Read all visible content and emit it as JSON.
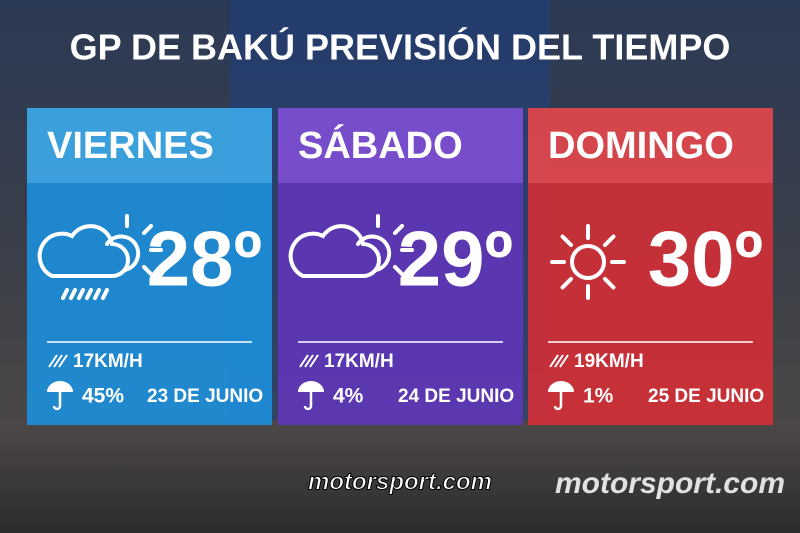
{
  "header": {
    "title": "GP DE BAKÚ PREVISIÓN DEL TIEMPO"
  },
  "days": [
    {
      "day": "VIERNES",
      "temperature": "28º",
      "wind": "17KM/H",
      "rain": "45%",
      "date": "23 DE JUNIO"
    },
    {
      "day": "SÁBADO",
      "temperature": "29º",
      "wind": "17KM/H",
      "rain": "4%",
      "date": "24 DE JUNIO"
    },
    {
      "day": "DOMINGO",
      "temperature": "30º",
      "wind": "19KM/H",
      "rain": "1%",
      "date": "25 DE JUNIO"
    }
  ],
  "logos": [
    "motorsport.com",
    "motorsport.com"
  ]
}
